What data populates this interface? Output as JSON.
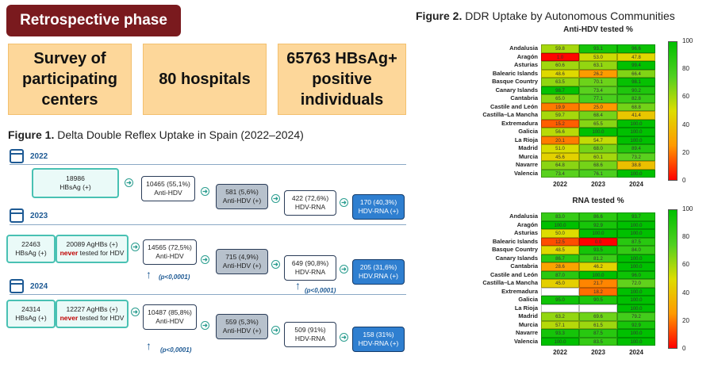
{
  "header": {
    "phase": "Retrospective phase",
    "boxes": [
      "Survey of\nparticipating\ncenters",
      "80 hospitals",
      "65763 HBsAg+\npositive\nindividuals"
    ]
  },
  "figure1": {
    "title_bold": "Figure 1.",
    "title_rest": " Delta Double Reflex Uptake in Spain (2022–2024)",
    "years": {
      "y2022": {
        "year": "2022",
        "hbsag_n": "18986",
        "hbsag_lbl": "HBsAg (+)",
        "antihdv_n": "10465 (55,1%)",
        "antihdv_lbl": "Anti-HDV",
        "antihdvpos_n": "581 (5,6%)",
        "antihdvpos_lbl": "Anti-HDV (+)",
        "rna_n": "422 (72,6%)",
        "rna_lbl": "HDV-RNA",
        "rnapos_n": "170 (40,3%)",
        "rnapos_lbl": "HDV-RNA (+)"
      },
      "y2023": {
        "year": "2023",
        "hbsag_n": "22463",
        "hbsag_lbl": "HBsAg (+)",
        "never_n": "20089 AgHBs (+)",
        "never_word": "never",
        "never_rest": " tested for HDV",
        "antihdv_n": "14565 (72,5%)",
        "antihdv_lbl": "Anti-HDV",
        "antihdvpos_n": "715 (4,9%)",
        "antihdvpos_lbl": "Anti-HDV (+)",
        "rna_n": "649 (90,8%)",
        "rna_lbl": "HDV-RNA",
        "rnapos_n": "205 (31,6%)",
        "rnapos_lbl": "HDV.RNA (+)",
        "p1": "(p<0,0001)",
        "p2": "(p<0,0001)"
      },
      "y2024": {
        "year": "2024",
        "hbsag_n": "24314",
        "hbsag_lbl": "HBsAg (+)",
        "never_n": "12227 AgHBs (+)",
        "never_word": "never",
        "never_rest": " tested for HDV",
        "antihdv_n": "10487 (85,8%)",
        "antihdv_lbl": "Anti-HDV",
        "antihdvpos_n": "559 (5,3%)",
        "antihdvpos_lbl": "Anti-HDV (+)",
        "rna_n": "509 (91%)",
        "rna_lbl": "HDV-RNA",
        "rnapos_n": "158 (31%)",
        "rnapos_lbl": "HDV-RNA (+)",
        "p1": "(p<0,0001)"
      }
    }
  },
  "figure2": {
    "title_bold": "Figure 2.",
    "title_rest": " DDR Uptake by Autonomous Communities",
    "colorscale": [
      "#ff0000",
      "#ff9900",
      "#dddd00",
      "#50d020",
      "#00c000"
    ],
    "colorbar_ticks": [
      "100",
      "80",
      "60",
      "40",
      "20",
      "0"
    ]
  },
  "chart_data": [
    {
      "type": "heatmap",
      "title": "Anti-HDV tested %",
      "columns": [
        "2022",
        "2023",
        "2024"
      ],
      "rows": [
        "Andalusia",
        "Aragón",
        "Asturias",
        "Balearic Islands",
        "Basque Country",
        "Canary Islands",
        "Cantabria",
        "Castile and León",
        "Castilla–La Mancha",
        "Extremadura",
        "Galicia",
        "La Rioja",
        "Madrid",
        "Murcia",
        "Navarre",
        "Valencia"
      ],
      "values": [
        [
          59.8,
          93.1,
          96.6
        ],
        [
          1.0,
          53.0,
          47.8
        ],
        [
          60.6,
          63.1,
          99.4
        ],
        [
          48.6,
          26.2,
          66.4
        ],
        [
          63.5,
          70.1,
          98.1
        ],
        [
          98.7,
          73.4,
          90.2
        ],
        [
          65.0,
          77.1,
          82.8
        ],
        [
          19.9,
          25.0,
          68.8
        ],
        [
          59.7,
          68.4,
          41.4
        ],
        [
          15.2,
          65.5,
          100.0
        ],
        [
          56.6,
          100.0,
          100.0
        ],
        [
          20.1,
          54.7,
          100.0
        ],
        [
          51.0,
          68.0,
          89.4
        ],
        [
          45.6,
          60.1,
          73.2
        ],
        [
          64.8,
          68.6,
          38.8
        ],
        [
          73.4,
          76.1,
          100.0
        ]
      ],
      "colorbar_range": [
        0,
        100
      ]
    },
    {
      "type": "heatmap",
      "title": "RNA tested %",
      "columns": [
        "2022",
        "2023",
        "2024"
      ],
      "rows": [
        "Andalusia",
        "Aragón",
        "Asturias",
        "Balearic Islands",
        "Basque Country",
        "Canary Islands",
        "Cantabria",
        "Castile and León",
        "Castilla–La Mancha",
        "Extremadura",
        "Galicia",
        "La Rioja",
        "Madrid",
        "Murcia",
        "Navarre",
        "Valencia"
      ],
      "values": [
        [
          83.0,
          86.6,
          93.7
        ],
        [
          100.0,
          92.9,
          100.0
        ],
        [
          50.0,
          100.0,
          100.0
        ],
        [
          12.5,
          0.0,
          87.5
        ],
        [
          48.5,
          93.5,
          84.0
        ],
        [
          86.7,
          81.2,
          100.0
        ],
        [
          28.6,
          46.2,
          100.0
        ],
        [
          87.0,
          100.0,
          96.0
        ],
        [
          45.0,
          21.7,
          72.0
        ],
        [
          null,
          18.2,
          100.0
        ],
        [
          95.0,
          90.5,
          100.0
        ],
        [
          null,
          null,
          100.0
        ],
        [
          63.2,
          69.6,
          79.2
        ],
        [
          57.1,
          61.5,
          92.9
        ],
        [
          93.3,
          87.5,
          100.0
        ],
        [
          100.0,
          83.5,
          100.0
        ]
      ],
      "colorbar_range": [
        0,
        100
      ]
    }
  ]
}
